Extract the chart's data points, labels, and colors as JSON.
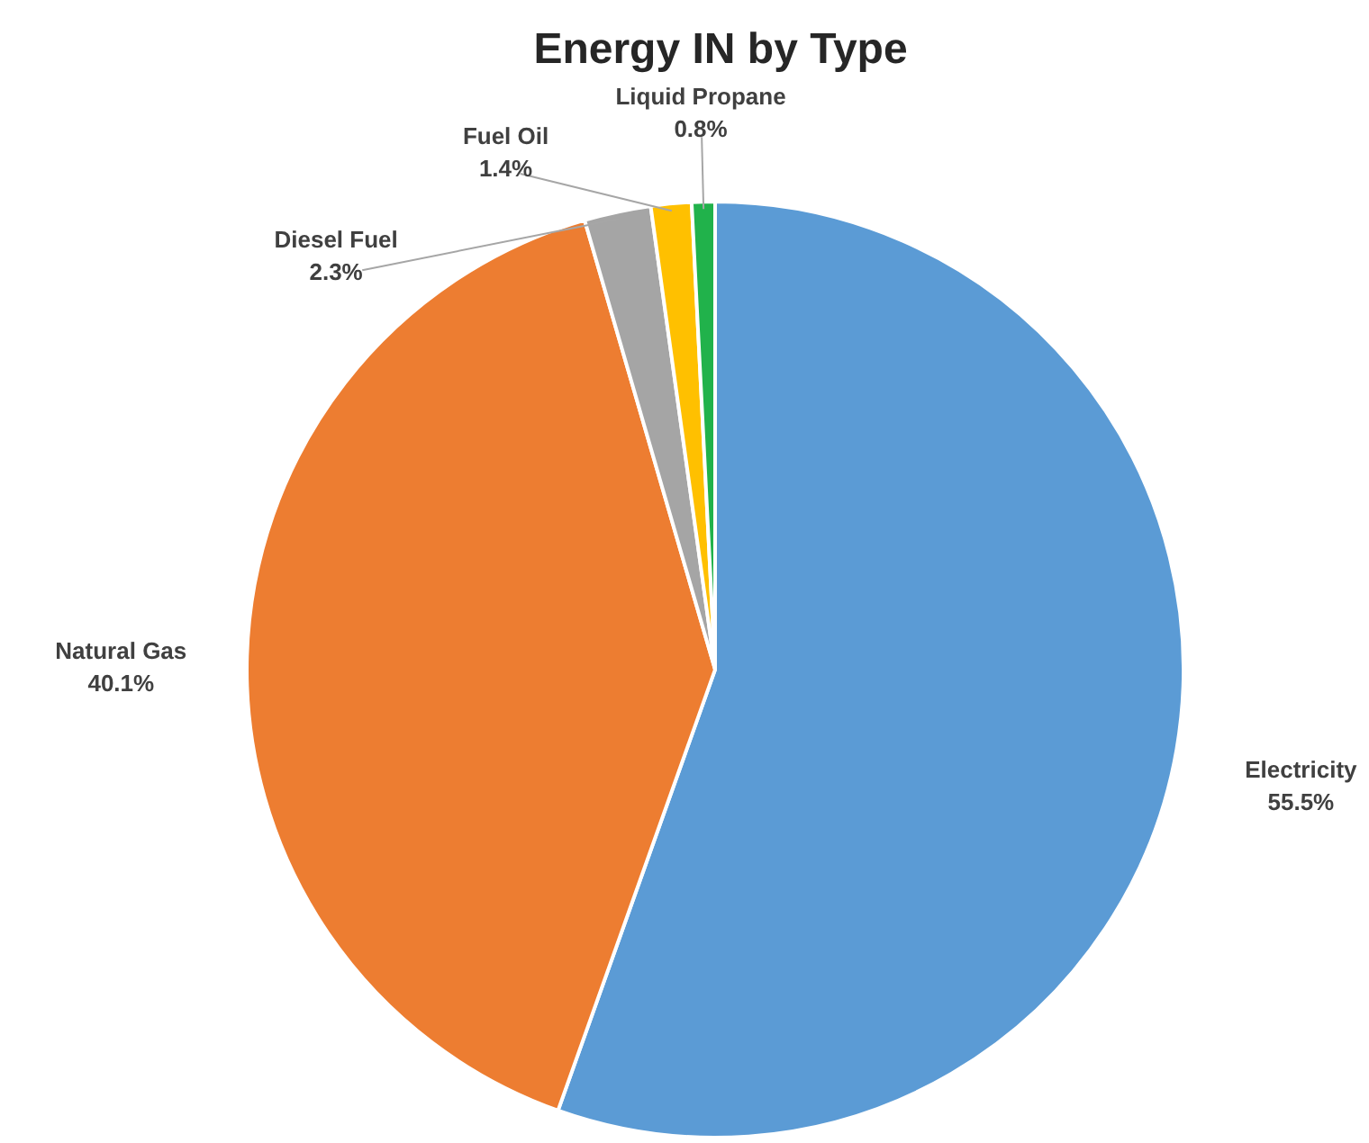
{
  "chart_data": {
    "type": "pie",
    "title": "Energy IN by Type",
    "categories": [
      "Electricity",
      "Natural Gas",
      "Diesel Fuel",
      "Fuel Oil",
      "Liquid Propane"
    ],
    "values": [
      55.5,
      40.1,
      2.3,
      1.4,
      0.8
    ],
    "value_labels": [
      "55.5%",
      "40.1%",
      "2.3%",
      "1.4%",
      "0.8%"
    ],
    "colors": [
      "#5b9bd5",
      "#ed7d31",
      "#a5a5a5",
      "#ffc000",
      "#21b24b"
    ]
  }
}
